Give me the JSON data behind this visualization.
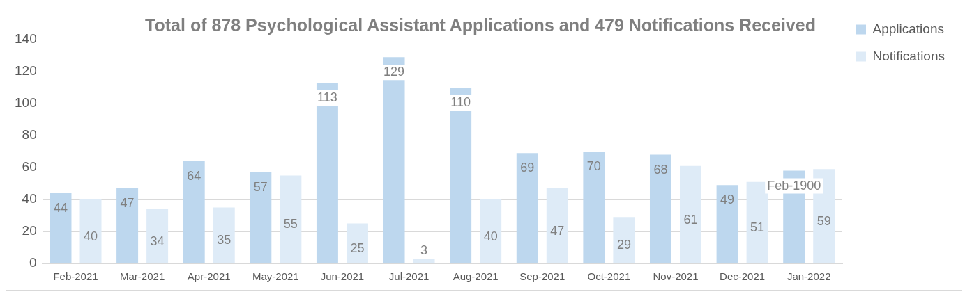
{
  "chart_data": {
    "type": "bar",
    "title": "Total of 878 Psychological Assistant Applications and 479 Notifications Received",
    "categories": [
      "Feb-2021",
      "Mar-2021",
      "Apr-2021",
      "May-2021",
      "Jun-2021",
      "Jul-2021",
      "Aug-2021",
      "Sep-2021",
      "Oct-2021",
      "Nov-2021",
      "Dec-2021",
      "Jan-2022"
    ],
    "series": [
      {
        "name": "Applications",
        "color": "#bdd7ee",
        "values": [
          44,
          47,
          64,
          57,
          113,
          129,
          110,
          69,
          70,
          68,
          49,
          58
        ],
        "value_labels": [
          "44",
          "47",
          "64",
          "57",
          "113",
          "129",
          "110",
          "69",
          "70",
          "68",
          "49",
          "Feb-1900"
        ]
      },
      {
        "name": "Notifications",
        "color": "#deebf7",
        "values": [
          40,
          34,
          35,
          55,
          25,
          3,
          40,
          47,
          29,
          61,
          51,
          59
        ],
        "value_labels": [
          "40",
          "34",
          "35",
          "55",
          "25",
          "3",
          "40",
          "47",
          "29",
          "61",
          "51",
          "59"
        ]
      }
    ],
    "ylim": [
      0,
      140
    ],
    "yticks": [
      0,
      20,
      40,
      60,
      80,
      100,
      120,
      140
    ],
    "grid": "y",
    "legend": "top right"
  }
}
